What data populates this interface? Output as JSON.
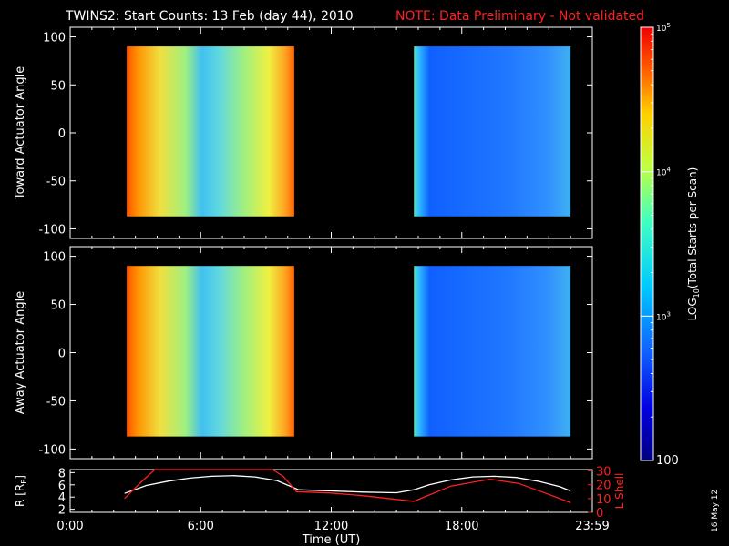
{
  "header": {
    "title": "TWINS2: Start Counts: 13 Feb (day  44), 2010",
    "note": "NOTE: Data Preliminary - Not validated"
  },
  "stamp": "16 May 12",
  "colors": {
    "background": "#000000",
    "axes": "#ffffff",
    "note": "#ff2020",
    "lshell": "#ff2020",
    "radius": "#ffffff"
  },
  "chart_data": [
    {
      "type": "heatmap",
      "panel": "toward",
      "ylabel": "Toward Actuator Angle",
      "ylim": [
        -110,
        110
      ],
      "yticks": [
        100,
        50,
        0,
        -50,
        -100
      ],
      "xlim": [
        0,
        24
      ],
      "x_unit": "hours UT",
      "data_blocks": [
        {
          "start_hour": 2.6,
          "end_hour": 10.3,
          "angle_range": [
            -87,
            90
          ],
          "level": "high",
          "log10_counts": 3.9
        },
        {
          "start_hour": 15.8,
          "end_hour": 23.0,
          "angle_range": [
            -87,
            90
          ],
          "level": "low",
          "log10_counts": 2.8
        }
      ]
    },
    {
      "type": "heatmap",
      "panel": "away",
      "ylabel": "Away Actuator Angle",
      "ylim": [
        -110,
        110
      ],
      "yticks": [
        100,
        50,
        0,
        -50,
        -100
      ],
      "xlim": [
        0,
        24
      ],
      "x_unit": "hours UT",
      "data_blocks": [
        {
          "start_hour": 2.6,
          "end_hour": 10.3,
          "angle_range": [
            -87,
            90
          ],
          "level": "high",
          "log10_counts": 3.9
        },
        {
          "start_hour": 15.8,
          "end_hour": 23.0,
          "angle_range": [
            -87,
            90
          ],
          "level": "low",
          "log10_counts": 2.8
        }
      ]
    },
    {
      "type": "line",
      "panel": "orbit",
      "xlabel": "Time (UT)",
      "xticks": [
        "0:00",
        "6:00",
        "12:00",
        "18:00",
        "23:59"
      ],
      "xtick_hours": [
        0,
        6,
        12,
        18,
        24
      ],
      "left_axis": {
        "label": "R [R",
        "label_sub": "E",
        "label_end": "]",
        "ticks": [
          "2",
          "4",
          "6",
          "8"
        ],
        "tick_values": [
          2,
          4,
          6,
          8
        ],
        "range": [
          1.5,
          8.5
        ]
      },
      "right_axis": {
        "label": "L Shell",
        "ticks": [
          "0",
          "10",
          "20",
          "30"
        ],
        "tick_values": [
          0,
          10,
          20,
          30
        ],
        "range": [
          0,
          31
        ]
      },
      "series": [
        {
          "axis": "left",
          "x": [
            2.5,
            3.5,
            4.5,
            5.5,
            6.5,
            7.5,
            8.5,
            9.5,
            10.5,
            12,
            13.5,
            15,
            15.8,
            16.5,
            17.5,
            18.5,
            19.5,
            20.5,
            21.5,
            22.5,
            23
          ],
          "y": [
            4.6,
            5.9,
            6.6,
            7.1,
            7.4,
            7.5,
            7.3,
            6.7,
            5.2,
            5.0,
            4.8,
            4.7,
            5.2,
            6.0,
            6.8,
            7.3,
            7.4,
            7.2,
            6.6,
            5.7,
            5.0
          ]
        },
        {
          "axis": "right",
          "x": [
            2.5,
            3.4,
            3.9,
            9.3,
            9.8,
            10.4,
            12,
            13.5,
            15.8,
            17.5,
            19.3,
            20.6,
            22,
            23
          ],
          "y": [
            10,
            24,
            31,
            31,
            26,
            15,
            14,
            12,
            8,
            19,
            24,
            21,
            13,
            7
          ]
        }
      ]
    },
    {
      "type": "heatmap",
      "panel": "colorbar",
      "ylabel": "LOG",
      "ylabel_sub": "10",
      "ylabel_rest": "(Total Starts per Scan)",
      "scale": "log",
      "range": [
        100,
        100000
      ],
      "tick_labels": [
        {
          "base": "10",
          "exp": "5",
          "value": 5
        },
        {
          "base": "10",
          "exp": "4",
          "value": 4
        },
        {
          "base": "10",
          "exp": "3",
          "value": 3
        }
      ],
      "bottom_label": "100"
    }
  ]
}
